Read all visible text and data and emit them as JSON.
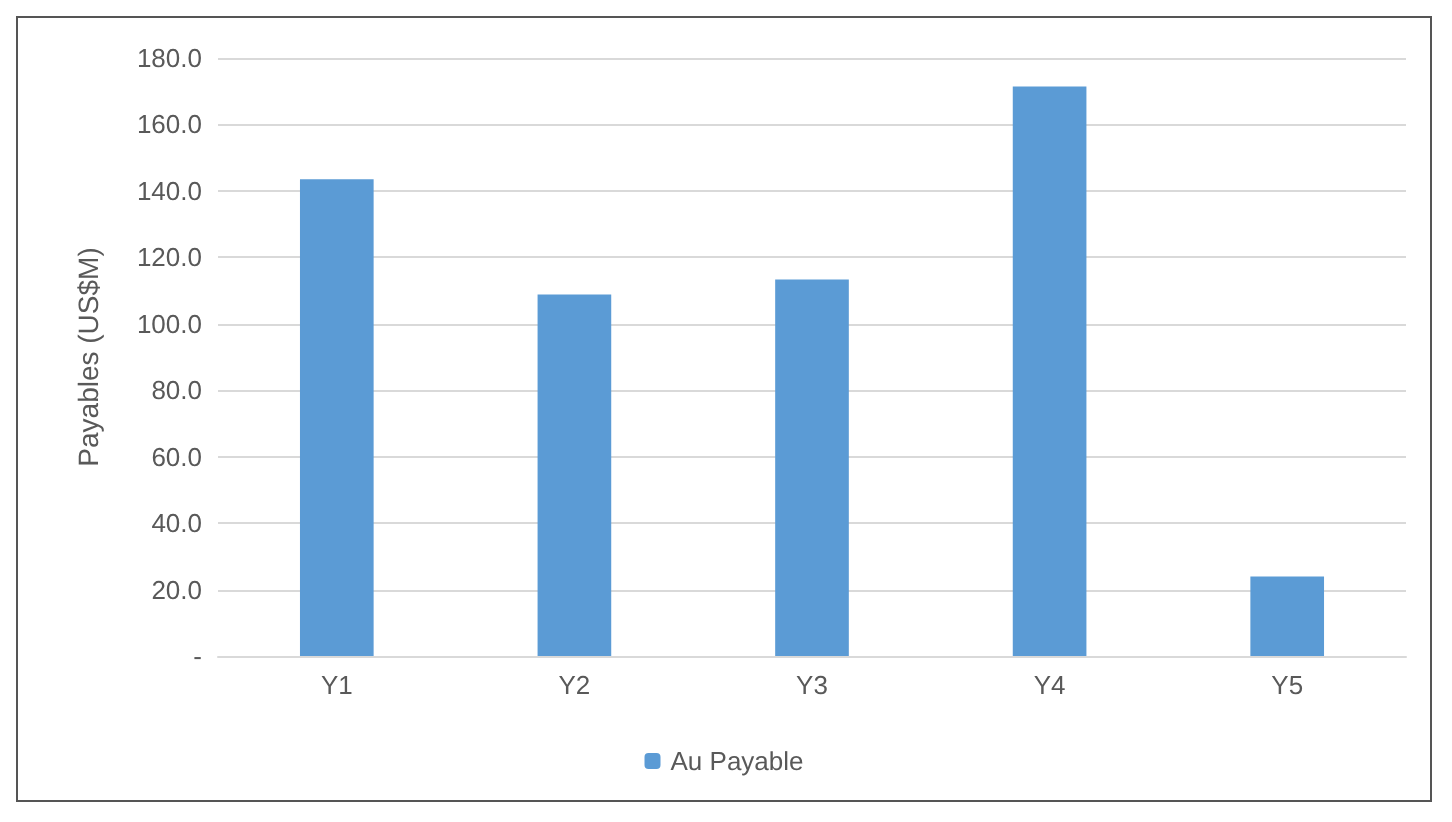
{
  "chart_data": {
    "type": "bar",
    "ylabel": "Payables (US$M)",
    "categories": [
      "Y1",
      "Y2",
      "Y3",
      "Y4",
      "Y5"
    ],
    "series": [
      {
        "name": "Au Payable",
        "color": "#5b9bd5",
        "values": [
          143.5,
          108.8,
          113.3,
          171.4,
          23.9
        ]
      }
    ],
    "ylim": [
      0,
      180
    ],
    "yticks": [
      {
        "value": 0,
        "label": "-"
      },
      {
        "value": 20,
        "label": "20.0"
      },
      {
        "value": 40,
        "label": "40.0"
      },
      {
        "value": 60,
        "label": "60.0"
      },
      {
        "value": 80,
        "label": "80.0"
      },
      {
        "value": 100,
        "label": "100.0"
      },
      {
        "value": 120,
        "label": "120.0"
      },
      {
        "value": 140,
        "label": "140.0"
      },
      {
        "value": 160,
        "label": "160.0"
      },
      {
        "value": 180,
        "label": "180.0"
      }
    ],
    "grid": "y",
    "legend": "bottom"
  }
}
